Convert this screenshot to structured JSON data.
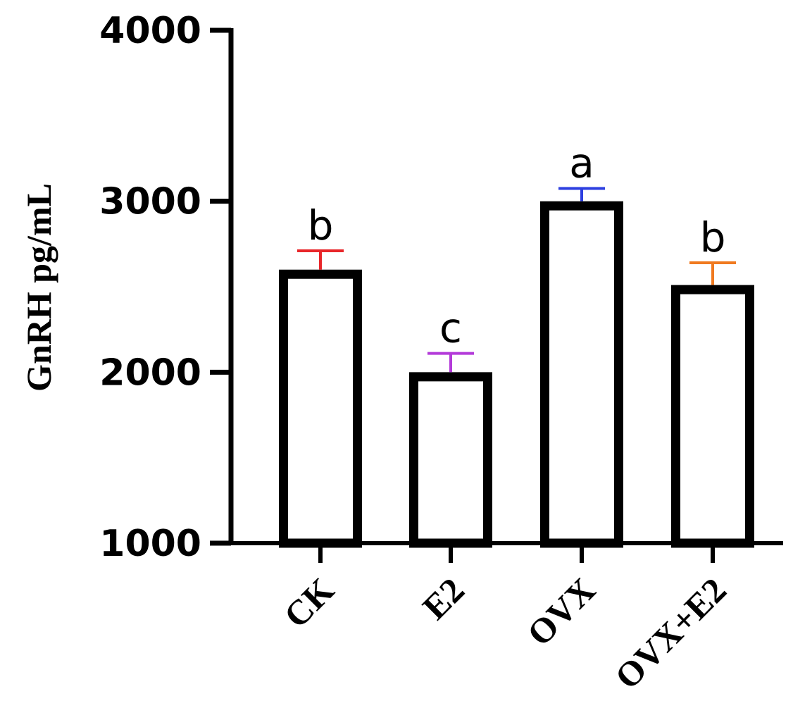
{
  "chart_data": {
    "type": "bar",
    "title": "",
    "xlabel": "",
    "ylabel": "GnRH pg/mL",
    "ylim": [
      1000,
      4000
    ],
    "yticks": [
      1000,
      2000,
      3000,
      4000
    ],
    "grid": false,
    "legend": "none",
    "categories": [
      "CK",
      "E2",
      "OVX",
      "OVX+E2"
    ],
    "values": [
      2600,
      2000,
      3000,
      2510
    ],
    "error_upper": [
      2710,
      2110,
      3075,
      2640
    ],
    "significance_labels": [
      "b",
      "c",
      "a",
      "b"
    ],
    "error_bar_colors": [
      "#e8262a",
      "#b33ad9",
      "#2d3fe0",
      "#f07a20"
    ],
    "bar_fill": "#ffffff",
    "bar_stroke": "#000000"
  }
}
